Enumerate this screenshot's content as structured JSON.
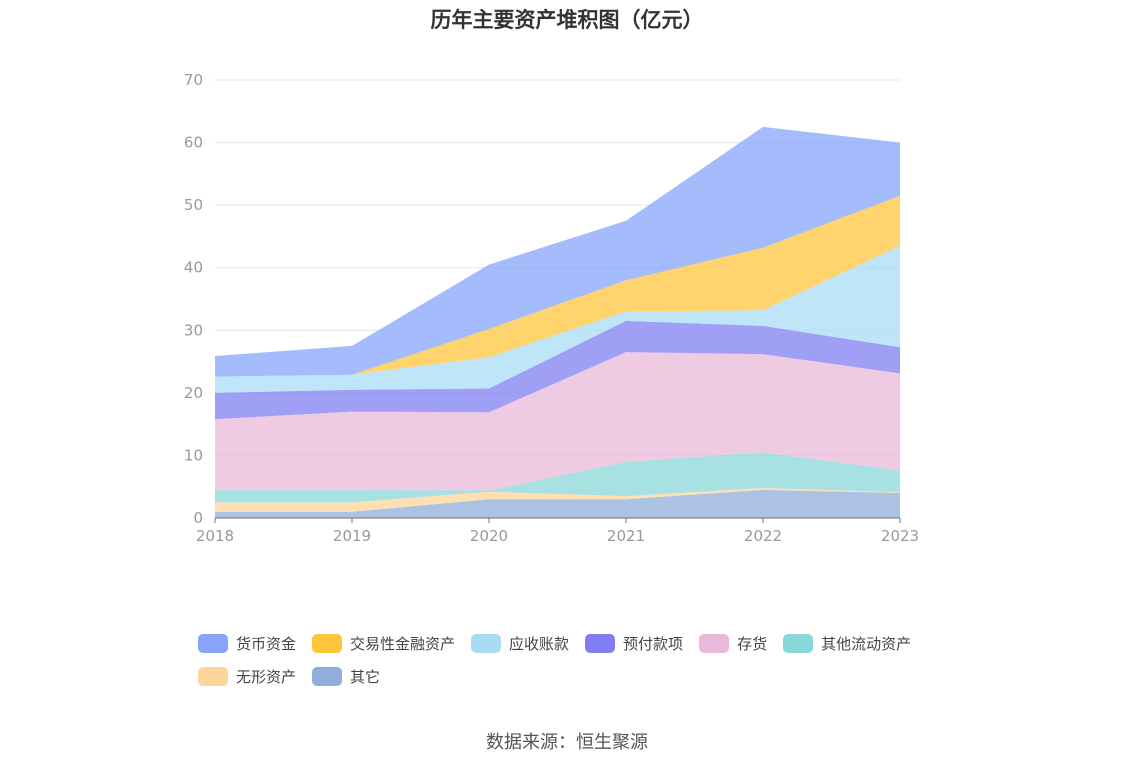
{
  "title": "历年主要资产堆积图（亿元）",
  "source": "数据来源：恒生聚源",
  "chart_data": {
    "type": "area",
    "stacked": true,
    "categories": [
      "2018",
      "2019",
      "2020",
      "2021",
      "2022",
      "2023"
    ],
    "ylim": [
      0,
      70
    ],
    "yticks": [
      0,
      10,
      20,
      30,
      40,
      50,
      60,
      70
    ],
    "grid": true,
    "legend_position": "bottom",
    "series": [
      {
        "name": "其它",
        "color": "#90aed9",
        "values": [
          1.0,
          1.0,
          3.0,
          3.0,
          4.5,
          4.0
        ]
      },
      {
        "name": "无形资产",
        "color": "#ffd69a",
        "values": [
          1.5,
          1.5,
          1.2,
          0.5,
          0.3,
          0.1
        ]
      },
      {
        "name": "其他流动资产",
        "color": "#8ad7d8",
        "values": [
          2.0,
          2.0,
          0.2,
          5.5,
          5.7,
          3.5
        ]
      },
      {
        "name": "存货",
        "color": "#eab9da",
        "values": [
          11.3,
          12.5,
          12.5,
          17.5,
          15.7,
          15.5
        ]
      },
      {
        "name": "预付款项",
        "color": "#7f7ff2",
        "values": [
          4.2,
          3.5,
          3.8,
          5.0,
          4.5,
          4.2
        ]
      },
      {
        "name": "应收账款",
        "color": "#a8dcf5",
        "values": [
          2.6,
          2.4,
          5.0,
          1.5,
          2.5,
          16.2
        ]
      },
      {
        "name": "交易性金融资产",
        "color": "#ffc53d",
        "values": [
          0.0,
          0.0,
          4.5,
          5.0,
          10.0,
          8.0
        ]
      },
      {
        "name": "货币资金",
        "color": "#86a4fb",
        "values": [
          3.3,
          4.6,
          10.3,
          9.5,
          19.3,
          8.5
        ]
      }
    ],
    "legend_order": [
      "货币资金",
      "交易性金融资产",
      "应收账款",
      "预付款项",
      "存货",
      "其他流动资产",
      "无形资产",
      "其它"
    ]
  }
}
